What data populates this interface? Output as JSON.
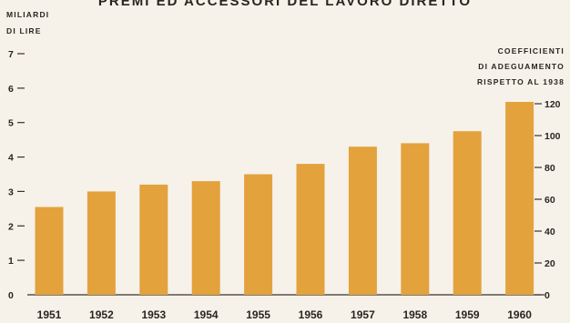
{
  "chart_data": {
    "type": "bar",
    "title": "PREMI ED ACCESSORI DEL LAVORO DIRETTO",
    "ylabel_lines": [
      "MILIARDI",
      "DI LIRE"
    ],
    "y2label_lines": [
      "COEFFICIENTI",
      "DI ADEGUAMENTO",
      "RISPETTO AL 1938"
    ],
    "categories": [
      "1951",
      "1952",
      "1953",
      "1954",
      "1955",
      "1956",
      "1957",
      "1958",
      "1959",
      "1960"
    ],
    "values": [
      2.55,
      3.0,
      3.2,
      3.3,
      3.5,
      3.8,
      4.3,
      4.4,
      4.75,
      5.6
    ],
    "ylim": [
      0,
      7
    ],
    "yticks": [
      "0",
      "1",
      "2",
      "3",
      "4",
      "5",
      "6",
      "7"
    ],
    "y2lim": [
      0,
      120
    ],
    "y2ticks": [
      "0",
      "20",
      "40",
      "60",
      "80",
      "100",
      "120"
    ],
    "bar_color": "#e3a23c",
    "grid": false
  }
}
